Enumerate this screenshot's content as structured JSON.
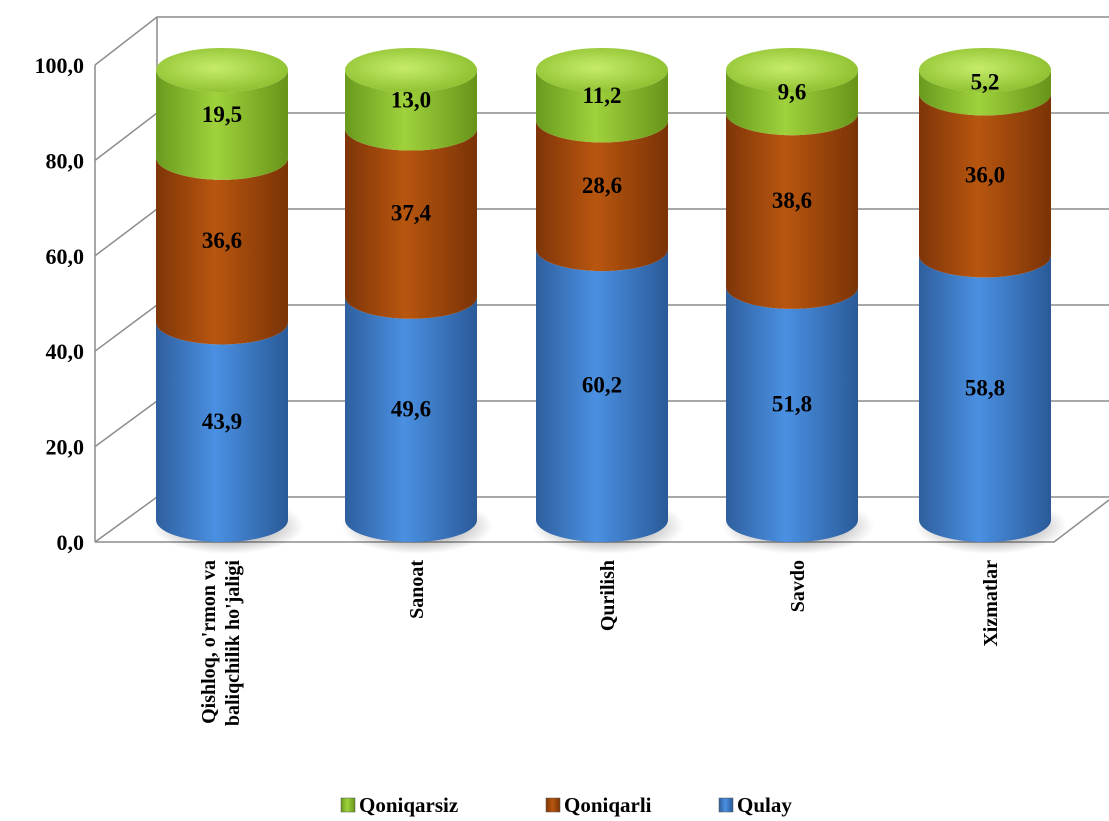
{
  "chart_data": {
    "type": "bar",
    "stacked": true,
    "style": "3d-cylinder",
    "categories": [
      [
        "Qishloq, o'rmon va",
        "baliqchilik ho'jaligi"
      ],
      [
        "Sanoat"
      ],
      [
        "Qurilish"
      ],
      [
        "Savdo"
      ],
      [
        "Xizmatlar"
      ]
    ],
    "series": [
      {
        "name": "Qulay",
        "values": [
          43.9,
          49.6,
          60.2,
          51.8,
          58.8
        ],
        "labels": [
          "43,9",
          "49,6",
          "60,2",
          "51,8",
          "58,8"
        ],
        "color": "#3a78c9"
      },
      {
        "name": "Qoniqarli",
        "values": [
          36.6,
          37.4,
          28.6,
          38.6,
          36.0
        ],
        "labels": [
          "36,6",
          "37,4",
          "28,6",
          "38,6",
          "36,0"
        ],
        "color": "#a64a0c"
      },
      {
        "name": "Qoniqarsiz",
        "values": [
          19.5,
          13.0,
          11.2,
          9.6,
          5.2
        ],
        "labels": [
          "19,5",
          "13,0",
          "11,2",
          "9,6",
          "5,2"
        ],
        "color": "#8cbf2e"
      }
    ],
    "yticks": [
      "0,0",
      "20,0",
      "40,0",
      "60,0",
      "80,0",
      "100,0"
    ],
    "ylim": [
      0,
      100
    ],
    "grid": true,
    "legend": {
      "position": "bottom",
      "order": [
        "Qoniqarsiz",
        "Qoniqarli",
        "Qulay"
      ]
    }
  }
}
